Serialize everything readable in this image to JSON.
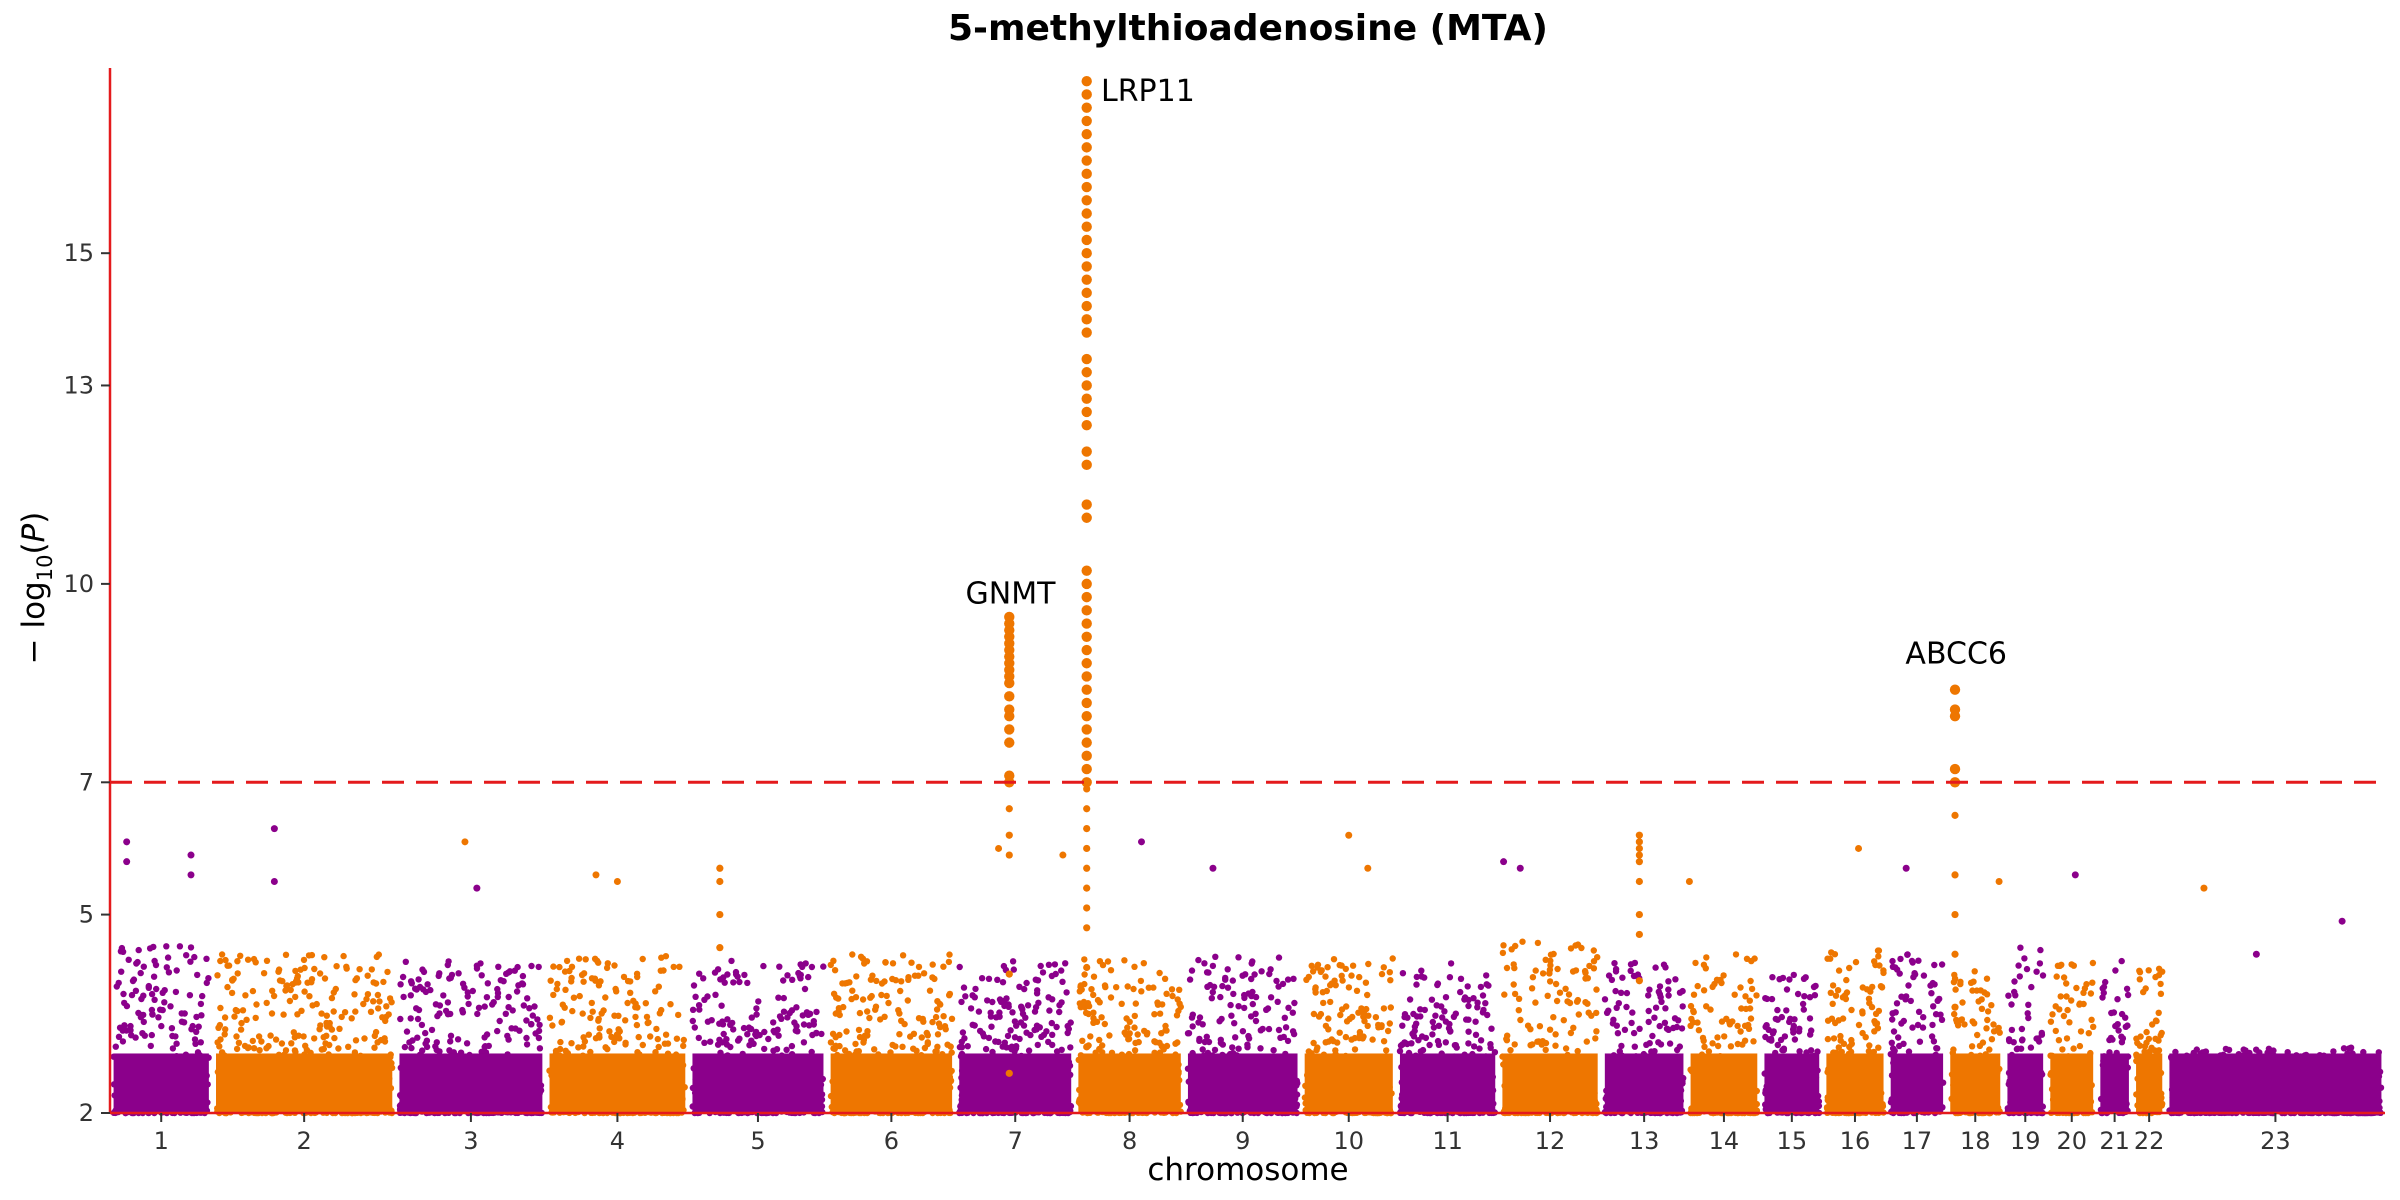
{
  "chart_data": {
    "type": "scatter",
    "subtype": "manhattan",
    "title": "5-methylthioadenosine (MTA)",
    "xlabel": "chromosome",
    "ylabel_parts": {
      "prefix": "− log",
      "subscript": "10",
      "open": "(",
      "var": "P",
      "close": ")"
    },
    "ylim": [
      2,
      17.8
    ],
    "yticks": [
      2,
      5,
      7,
      10,
      13,
      15
    ],
    "threshold": 7.0,
    "colors": {
      "odd": "#8B008B",
      "even": "#EE7600",
      "axis": "#E41A1C",
      "threshold": "#E41A1C"
    },
    "chromosomes": [
      {
        "label": "1",
        "range": [
          0.0,
          4.3
        ],
        "bulk_max": 4.6,
        "color": "odd"
      },
      {
        "label": "2",
        "range": [
          4.3,
          12.0
        ],
        "bulk_max": 4.4,
        "color": "even"
      },
      {
        "label": "3",
        "range": [
          12.0,
          18.3
        ],
        "bulk_max": 4.3,
        "color": "odd"
      },
      {
        "label": "4",
        "range": [
          18.3,
          24.3
        ],
        "bulk_max": 4.4,
        "color": "even"
      },
      {
        "label": "5",
        "range": [
          24.3,
          30.1
        ],
        "bulk_max": 4.3,
        "color": "odd"
      },
      {
        "label": "6",
        "range": [
          30.1,
          35.5
        ],
        "bulk_max": 4.4,
        "color": "even"
      },
      {
        "label": "7",
        "range": [
          35.5,
          40.5
        ],
        "bulk_max": 4.3,
        "color": "odd"
      },
      {
        "label": "8",
        "range": [
          40.5,
          45.1
        ],
        "bulk_max": 4.4,
        "color": "even"
      },
      {
        "label": "9",
        "range": [
          45.1,
          50.0
        ],
        "bulk_max": 4.4,
        "color": "odd"
      },
      {
        "label": "10",
        "range": [
          50.0,
          54.0
        ],
        "bulk_max": 4.4,
        "color": "even"
      },
      {
        "label": "11",
        "range": [
          54.0,
          58.3
        ],
        "bulk_max": 4.3,
        "color": "odd"
      },
      {
        "label": "12",
        "range": [
          58.3,
          62.6
        ],
        "bulk_max": 4.6,
        "color": "even"
      },
      {
        "label": "13",
        "range": [
          62.6,
          66.2
        ],
        "bulk_max": 4.3,
        "color": "odd"
      },
      {
        "label": "14",
        "range": [
          66.2,
          69.3
        ],
        "bulk_max": 4.4,
        "color": "even"
      },
      {
        "label": "15",
        "range": [
          69.3,
          71.9
        ],
        "bulk_max": 4.1,
        "color": "odd"
      },
      {
        "label": "16",
        "range": [
          71.9,
          74.6
        ],
        "bulk_max": 4.5,
        "color": "even"
      },
      {
        "label": "17",
        "range": [
          74.6,
          77.1
        ],
        "bulk_max": 4.4,
        "color": "odd"
      },
      {
        "label": "18",
        "range": [
          77.1,
          79.5
        ],
        "bulk_max": 4.2,
        "color": "even"
      },
      {
        "label": "19",
        "range": [
          79.5,
          81.3
        ],
        "bulk_max": 4.5,
        "color": "odd"
      },
      {
        "label": "20",
        "range": [
          81.3,
          83.4
        ],
        "bulk_max": 4.3,
        "color": "even"
      },
      {
        "label": "21",
        "range": [
          83.4,
          84.9
        ],
        "bulk_max": 4.3,
        "color": "odd"
      },
      {
        "label": "22",
        "range": [
          84.9,
          86.3
        ],
        "bulk_max": 4.3,
        "color": "even"
      },
      {
        "label": "23",
        "range": [
          86.3,
          95.5
        ],
        "bulk_max": 3.0,
        "color": "odd"
      }
    ],
    "peaks": [
      {
        "x": 37.75,
        "ys": [
          2.6,
          4.1,
          5.9,
          6.2,
          6.6,
          7.0,
          7.1,
          7.6,
          7.8,
          8.0,
          8.1,
          8.3,
          8.5,
          8.6,
          8.7,
          8.8,
          8.9,
          9.0,
          9.1,
          9.2,
          9.3,
          9.4,
          9.5
        ],
        "color": "even",
        "big_threshold": 7.0
      },
      {
        "x": 41.0,
        "ys": [
          3.0,
          4.2,
          4.8,
          5.1,
          5.4,
          5.7,
          6.0,
          6.3,
          6.6,
          6.9,
          7.0,
          7.2,
          7.4,
          7.6,
          7.8,
          8.0,
          8.2,
          8.4,
          8.6,
          8.8,
          9.0,
          9.2,
          9.4,
          9.6,
          9.8,
          10.0,
          10.2,
          11.0,
          11.2,
          11.8,
          12.0,
          12.4,
          12.6,
          12.8,
          13.0,
          13.2,
          13.4,
          13.8,
          14.0,
          14.2,
          14.4,
          14.6,
          14.8,
          15.0,
          15.2,
          15.4,
          15.6,
          15.8,
          16.0,
          16.2,
          16.4,
          16.6,
          16.8,
          17.0,
          17.2,
          17.4,
          17.6
        ],
        "color": "even",
        "big_threshold": 7.0
      },
      {
        "x": 77.45,
        "ys": [
          2.8,
          3.6,
          4.4,
          5.0,
          5.6,
          6.5,
          7.2,
          7.0,
          8.0,
          8.1,
          8.4
        ],
        "color": "even",
        "big_threshold": 7.0
      },
      {
        "x": 64.2,
        "ys": [
          4.0,
          4.7,
          5.0,
          5.5,
          5.8,
          5.9,
          6.0,
          6.1,
          6.2
        ],
        "color": "even",
        "big_threshold": 99
      },
      {
        "x": 25.6,
        "ys": [
          4.5,
          5.0,
          5.5,
          5.7
        ],
        "color": "even",
        "big_threshold": 99
      }
    ],
    "scattered_highs": [
      {
        "x": 0.7,
        "y": 6.1,
        "color": "odd"
      },
      {
        "x": 0.7,
        "y": 5.8,
        "color": "odd"
      },
      {
        "x": 3.4,
        "y": 5.9,
        "color": "odd"
      },
      {
        "x": 3.4,
        "y": 5.6,
        "color": "odd"
      },
      {
        "x": 6.9,
        "y": 6.3,
        "color": "odd"
      },
      {
        "x": 6.9,
        "y": 5.5,
        "color": "odd"
      },
      {
        "x": 14.9,
        "y": 6.1,
        "color": "even"
      },
      {
        "x": 15.4,
        "y": 5.4,
        "color": "odd"
      },
      {
        "x": 20.4,
        "y": 5.6,
        "color": "even"
      },
      {
        "x": 21.3,
        "y": 5.5,
        "color": "even"
      },
      {
        "x": 40.0,
        "y": 5.9,
        "color": "even"
      },
      {
        "x": 37.3,
        "y": 6.0,
        "color": "even"
      },
      {
        "x": 43.3,
        "y": 6.1,
        "color": "odd"
      },
      {
        "x": 46.3,
        "y": 5.7,
        "color": "odd"
      },
      {
        "x": 52.0,
        "y": 6.2,
        "color": "even"
      },
      {
        "x": 52.8,
        "y": 5.7,
        "color": "even"
      },
      {
        "x": 59.2,
        "y": 5.7,
        "color": "odd"
      },
      {
        "x": 58.5,
        "y": 5.8,
        "color": "odd"
      },
      {
        "x": 66.3,
        "y": 5.5,
        "color": "even"
      },
      {
        "x": 73.4,
        "y": 6.0,
        "color": "even"
      },
      {
        "x": 75.4,
        "y": 5.7,
        "color": "odd"
      },
      {
        "x": 79.3,
        "y": 5.5,
        "color": "even"
      },
      {
        "x": 82.5,
        "y": 5.6,
        "color": "odd"
      },
      {
        "x": 87.9,
        "y": 5.4,
        "color": "even"
      },
      {
        "x": 93.7,
        "y": 4.9,
        "color": "odd"
      },
      {
        "x": 90.1,
        "y": 4.4,
        "color": "odd"
      }
    ],
    "annotations": [
      {
        "text": "GNMT",
        "x": 37.8,
        "y": 9.7,
        "anchor": "middle"
      },
      {
        "text": "LRP11",
        "x": 41.6,
        "y": 17.3,
        "anchor": "start"
      },
      {
        "text": "ABCC6",
        "x": 77.5,
        "y": 8.8,
        "anchor": "middle"
      }
    ]
  }
}
